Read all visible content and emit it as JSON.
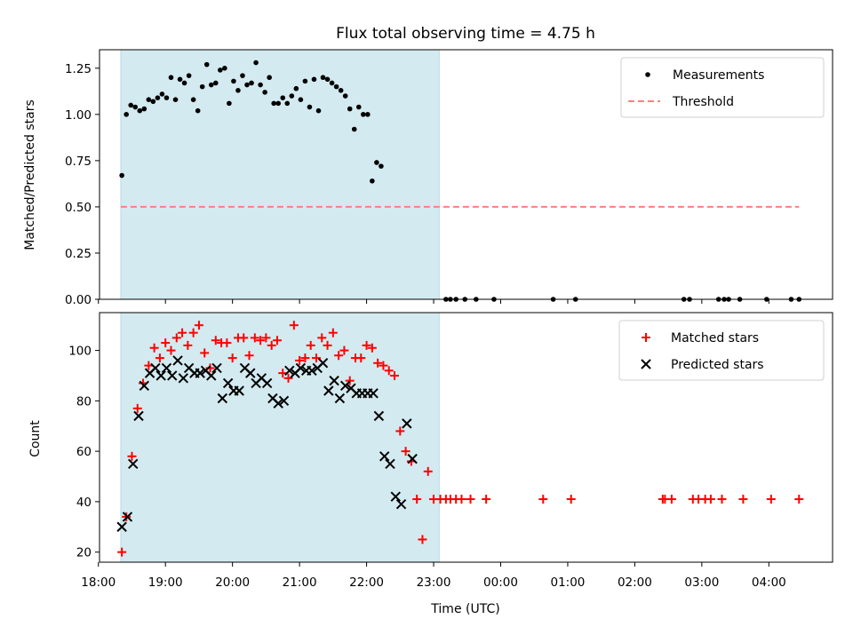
{
  "chart_data": [
    {
      "type": "scatter",
      "title": "Flux total observing time = 4.75 h",
      "xlabel": "",
      "ylabel": "Matched/Predicted stars",
      "xlim": [
        "18:01",
        "04:57"
      ],
      "ylim": [
        0,
        1.35
      ],
      "yticks": [
        0,
        0.25,
        0.5,
        0.75,
        1.0,
        1.25
      ],
      "ytick_labels": [
        "0.00",
        "0.25",
        "0.50",
        "0.75",
        "1.00",
        "1.25"
      ],
      "legend_position": "upper right",
      "shaded_span": [
        "18:20",
        "23:05"
      ],
      "shaded_color": "#d3eaf0",
      "threshold": {
        "name": "Threshold",
        "value": 0.5,
        "x_range": [
          "18:20",
          "04:27"
        ],
        "color": "#ff7f7f",
        "style": "dashed"
      },
      "series": [
        {
          "name": "Measurements",
          "marker": "dot",
          "color": "#000000",
          "points": [
            [
              "18:21",
              0.67
            ],
            [
              "18:25",
              1.0
            ],
            [
              "18:29",
              1.05
            ],
            [
              "18:33",
              1.04
            ],
            [
              "18:37",
              1.02
            ],
            [
              "18:41",
              1.03
            ],
            [
              "18:45",
              1.08
            ],
            [
              "18:49",
              1.07
            ],
            [
              "18:53",
              1.09
            ],
            [
              "18:57",
              1.11
            ],
            [
              "19:01",
              1.09
            ],
            [
              "19:05",
              1.2
            ],
            [
              "19:09",
              1.08
            ],
            [
              "19:13",
              1.19
            ],
            [
              "19:17",
              1.17
            ],
            [
              "19:21",
              1.21
            ],
            [
              "19:25",
              1.08
            ],
            [
              "19:29",
              1.02
            ],
            [
              "19:33",
              1.15
            ],
            [
              "19:37",
              1.27
            ],
            [
              "19:41",
              1.16
            ],
            [
              "19:45",
              1.17
            ],
            [
              "19:49",
              1.24
            ],
            [
              "19:53",
              1.25
            ],
            [
              "19:57",
              1.06
            ],
            [
              "20:01",
              1.18
            ],
            [
              "20:05",
              1.13
            ],
            [
              "20:09",
              1.21
            ],
            [
              "20:13",
              1.16
            ],
            [
              "20:17",
              1.17
            ],
            [
              "20:21",
              1.28
            ],
            [
              "20:25",
              1.16
            ],
            [
              "20:29",
              1.12
            ],
            [
              "20:33",
              1.2
            ],
            [
              "20:37",
              1.06
            ],
            [
              "20:41",
              1.06
            ],
            [
              "20:45",
              1.09
            ],
            [
              "20:49",
              1.06
            ],
            [
              "20:53",
              1.1
            ],
            [
              "20:57",
              1.14
            ],
            [
              "21:01",
              1.08
            ],
            [
              "21:05",
              1.18
            ],
            [
              "21:09",
              1.04
            ],
            [
              "21:13",
              1.19
            ],
            [
              "21:17",
              1.02
            ],
            [
              "21:21",
              1.2
            ],
            [
              "21:25",
              1.19
            ],
            [
              "21:29",
              1.17
            ],
            [
              "21:33",
              1.15
            ],
            [
              "21:37",
              1.13
            ],
            [
              "21:41",
              1.1
            ],
            [
              "21:45",
              1.03
            ],
            [
              "21:49",
              0.92
            ],
            [
              "21:53",
              1.04
            ],
            [
              "21:57",
              1.0
            ],
            [
              "22:01",
              1.0
            ],
            [
              "22:05",
              0.64
            ],
            [
              "22:09",
              0.74
            ],
            [
              "22:13",
              0.72
            ],
            [
              "23:11",
              0.0
            ],
            [
              "23:15",
              0.0
            ],
            [
              "23:20",
              0.0
            ],
            [
              "23:28",
              0.0
            ],
            [
              "23:38",
              0.0
            ],
            [
              "23:54",
              0.0
            ],
            [
              "00:47",
              0.0
            ],
            [
              "01:07",
              0.0
            ],
            [
              "02:44",
              0.0
            ],
            [
              "02:49",
              0.0
            ],
            [
              "03:15",
              0.0
            ],
            [
              "03:20",
              0.0
            ],
            [
              "03:24",
              0.0
            ],
            [
              "03:34",
              0.0
            ],
            [
              "03:58",
              0.0
            ],
            [
              "04:20",
              0.0
            ],
            [
              "04:27",
              0.0
            ]
          ]
        }
      ]
    },
    {
      "type": "scatter",
      "title": "",
      "xlabel": "Time (UTC)",
      "ylabel": "Count",
      "xlim": [
        "18:01",
        "04:57"
      ],
      "ylim": [
        16,
        115
      ],
      "yticks": [
        20,
        40,
        60,
        80,
        100
      ],
      "ytick_labels": [
        "20",
        "40",
        "60",
        "80",
        "100"
      ],
      "xticks": [
        "18:00",
        "19:00",
        "20:00",
        "21:00",
        "22:00",
        "23:00",
        "00:00",
        "01:00",
        "02:00",
        "03:00",
        "04:00"
      ],
      "legend_position": "upper right",
      "shaded_span": [
        "18:20",
        "23:05"
      ],
      "shaded_color": "#d3eaf0",
      "series": [
        {
          "name": "Matched stars",
          "marker": "plus",
          "color": "#ff0000",
          "points": [
            [
              "18:21",
              20
            ],
            [
              "18:25",
              34
            ],
            [
              "18:30",
              58
            ],
            [
              "18:35",
              77
            ],
            [
              "18:40",
              87
            ],
            [
              "18:45",
              94
            ],
            [
              "18:50",
              101
            ],
            [
              "18:55",
              97
            ],
            [
              "19:00",
              103
            ],
            [
              "19:05",
              100
            ],
            [
              "19:10",
              105
            ],
            [
              "19:15",
              107
            ],
            [
              "19:20",
              102
            ],
            [
              "19:25",
              107
            ],
            [
              "19:30",
              110
            ],
            [
              "19:35",
              99
            ],
            [
              "19:40",
              93
            ],
            [
              "19:45",
              104
            ],
            [
              "19:50",
              103
            ],
            [
              "19:55",
              103
            ],
            [
              "20:00",
              97
            ],
            [
              "20:05",
              105
            ],
            [
              "20:10",
              105
            ],
            [
              "20:15",
              98
            ],
            [
              "20:20",
              105
            ],
            [
              "20:25",
              104
            ],
            [
              "20:30",
              105
            ],
            [
              "20:35",
              102
            ],
            [
              "20:40",
              104
            ],
            [
              "20:45",
              91
            ],
            [
              "20:50",
              89
            ],
            [
              "20:55",
              110
            ],
            [
              "21:00",
              96
            ],
            [
              "21:05",
              97
            ],
            [
              "21:10",
              102
            ],
            [
              "21:15",
              97
            ],
            [
              "21:20",
              105
            ],
            [
              "21:25",
              102
            ],
            [
              "21:30",
              107
            ],
            [
              "21:35",
              98
            ],
            [
              "21:40",
              100
            ],
            [
              "21:45",
              88
            ],
            [
              "21:50",
              97
            ],
            [
              "21:55",
              97
            ],
            [
              "22:00",
              102
            ],
            [
              "22:05",
              101
            ],
            [
              "22:10",
              95
            ],
            [
              "22:15",
              94
            ],
            [
              "22:20",
              92
            ],
            [
              "22:25",
              90
            ],
            [
              "22:30",
              68
            ],
            [
              "22:35",
              60
            ],
            [
              "22:40",
              56
            ],
            [
              "22:45",
              41
            ],
            [
              "22:50",
              25
            ],
            [
              "22:55",
              52
            ],
            [
              "23:00",
              41
            ],
            [
              "23:06",
              41
            ],
            [
              "23:11",
              41
            ],
            [
              "23:15",
              41
            ],
            [
              "23:20",
              41
            ],
            [
              "23:25",
              41
            ],
            [
              "23:33",
              41
            ],
            [
              "23:47",
              41
            ],
            [
              "00:38",
              41
            ],
            [
              "01:03",
              41
            ],
            [
              "02:25",
              41
            ],
            [
              "02:27",
              41
            ],
            [
              "02:33",
              41
            ],
            [
              "02:52",
              41
            ],
            [
              "02:57",
              41
            ],
            [
              "03:03",
              41
            ],
            [
              "03:08",
              41
            ],
            [
              "03:18",
              41
            ],
            [
              "03:37",
              41
            ],
            [
              "04:02",
              41
            ],
            [
              "04:27",
              41
            ]
          ]
        },
        {
          "name": "Predicted stars",
          "marker": "x",
          "color": "#000000",
          "points": [
            [
              "18:21",
              30
            ],
            [
              "18:26",
              34
            ],
            [
              "18:31",
              55
            ],
            [
              "18:36",
              74
            ],
            [
              "18:41",
              86
            ],
            [
              "18:46",
              91
            ],
            [
              "18:51",
              93
            ],
            [
              "18:56",
              90
            ],
            [
              "19:01",
              93
            ],
            [
              "19:06",
              90
            ],
            [
              "19:11",
              96
            ],
            [
              "19:16",
              89
            ],
            [
              "19:21",
              93
            ],
            [
              "19:26",
              91
            ],
            [
              "19:31",
              91
            ],
            [
              "19:36",
              92
            ],
            [
              "19:41",
              90
            ],
            [
              "19:46",
              93
            ],
            [
              "19:51",
              81
            ],
            [
              "19:56",
              87
            ],
            [
              "20:01",
              84
            ],
            [
              "20:06",
              84
            ],
            [
              "20:11",
              93
            ],
            [
              "20:16",
              91
            ],
            [
              "20:21",
              87
            ],
            [
              "20:26",
              89
            ],
            [
              "20:31",
              87
            ],
            [
              "20:36",
              81
            ],
            [
              "20:41",
              79
            ],
            [
              "20:46",
              80
            ],
            [
              "20:51",
              92
            ],
            [
              "20:56",
              91
            ],
            [
              "21:01",
              93
            ],
            [
              "21:06",
              92
            ],
            [
              "21:11",
              92
            ],
            [
              "21:16",
              93
            ],
            [
              "21:21",
              95
            ],
            [
              "21:26",
              84
            ],
            [
              "21:31",
              88
            ],
            [
              "21:36",
              81
            ],
            [
              "21:41",
              86
            ],
            [
              "21:46",
              85
            ],
            [
              "21:51",
              83
            ],
            [
              "21:56",
              83
            ],
            [
              "22:01",
              83
            ],
            [
              "22:06",
              83
            ],
            [
              "22:11",
              74
            ],
            [
              "22:16",
              58
            ],
            [
              "22:21",
              55
            ],
            [
              "22:26",
              42
            ],
            [
              "22:31",
              39
            ],
            [
              "22:36",
              71
            ],
            [
              "22:41",
              57
            ]
          ]
        }
      ]
    }
  ]
}
